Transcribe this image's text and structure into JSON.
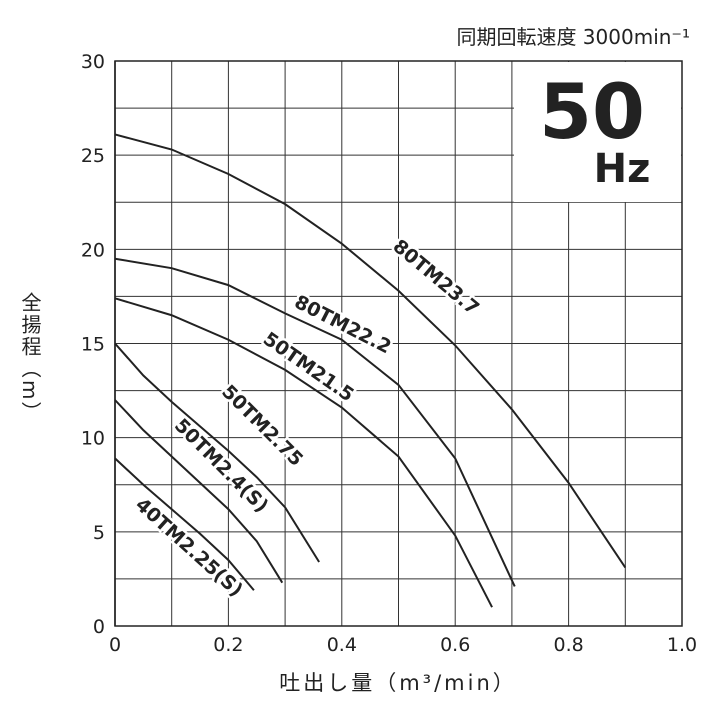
{
  "chart_data": {
    "type": "line",
    "title": "同期回転速度 3000min⁻¹",
    "badge": "50",
    "badge_unit": "Hz",
    "x_label": "吐出し量（m³/min）",
    "y_label": "全揚程（m）",
    "xlim": [
      0,
      1.0
    ],
    "ylim": [
      0,
      30
    ],
    "xticks": [
      0,
      0.2,
      0.4,
      0.6,
      0.8,
      {
        "value": 1.0,
        "label": "1.0"
      }
    ],
    "yticks": [
      0,
      5,
      10,
      15,
      20,
      25,
      30
    ],
    "xminor": [
      0.1,
      0.3,
      0.5,
      0.7,
      0.9
    ],
    "yminor": [
      2.5,
      7.5,
      12.5,
      17.5,
      22.5,
      27.5
    ],
    "grid": true,
    "series": [
      {
        "name": "80TM23.7",
        "color": "#222",
        "x": [
          0,
          0.1,
          0.2,
          0.3,
          0.4,
          0.5,
          0.6,
          0.7,
          0.8,
          0.9
        ],
        "values": [
          26.1,
          25.3,
          24.0,
          22.4,
          20.3,
          17.8,
          14.9,
          11.5,
          7.6,
          3.1
        ]
      },
      {
        "name": "80TM22.2",
        "color": "#222",
        "x": [
          0,
          0.1,
          0.2,
          0.3,
          0.4,
          0.5,
          0.6,
          0.705
        ],
        "values": [
          19.5,
          19.0,
          18.1,
          16.6,
          15.2,
          12.8,
          8.9,
          2.1
        ]
      },
      {
        "name": "50TM21.5",
        "color": "#222",
        "x": [
          0,
          0.1,
          0.2,
          0.3,
          0.4,
          0.5,
          0.6,
          0.665
        ],
        "values": [
          17.4,
          16.5,
          15.2,
          13.6,
          11.6,
          9.0,
          4.8,
          1.0
        ]
      },
      {
        "name": "50TM2.75",
        "color": "#222",
        "x": [
          0,
          0.05,
          0.1,
          0.15,
          0.2,
          0.25,
          0.3,
          0.36
        ],
        "values": [
          15.0,
          13.3,
          11.9,
          10.6,
          9.3,
          7.9,
          6.3,
          3.4
        ]
      },
      {
        "name": "50TM2.4(S)",
        "color": "#222",
        "x": [
          0,
          0.05,
          0.1,
          0.15,
          0.2,
          0.25,
          0.295
        ],
        "values": [
          12.0,
          10.4,
          9.0,
          7.6,
          6.2,
          4.5,
          2.3
        ]
      },
      {
        "name": "40TM2.25(S)",
        "color": "#222",
        "x": [
          0,
          0.05,
          0.1,
          0.15,
          0.2,
          0.245
        ],
        "values": [
          8.9,
          7.5,
          6.2,
          4.9,
          3.5,
          1.9
        ]
      }
    ]
  }
}
